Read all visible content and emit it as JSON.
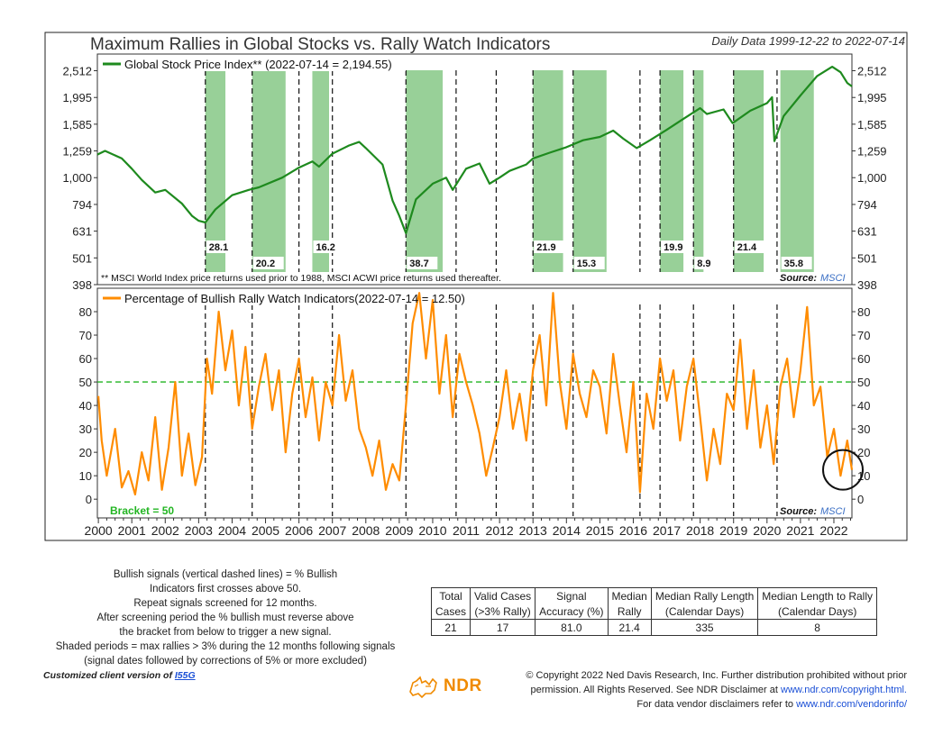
{
  "title": "Maximum Rallies in Global Stocks vs. Rally Watch Indicators",
  "date_range": "Daily Data 1999-12-22 to 2022-07-14",
  "top_panel": {
    "legend": "Global Stock Price Index** (2022-07-14 = 2,194.55)",
    "footnote": "** MSCI World Index price returns used prior to 1988, MSCI ACWI price returns used thereafter.",
    "source_label": "Source:",
    "source_name": "MSCI",
    "line_color": "#1e8a1e"
  },
  "bottom_panel": {
    "legend": "Percentage of Bullish Rally Watch Indicators(2022-07-14 = 12.50)",
    "bracket_label": "Bracket = 50",
    "source_label": "Source:",
    "source_name": "MSCI",
    "line_color": "#ff8c00"
  },
  "chart_data": [
    {
      "type": "line",
      "name": "top-panel",
      "scale": "log",
      "legend": "Global Stock Price Index** (2022-07-14 = 2,194.55)",
      "y_ticks": [
        398,
        501,
        631,
        794,
        1000,
        1259,
        1585,
        1995,
        2512
      ],
      "y_tick_labels": [
        "398",
        "501",
        "631",
        "794",
        "1,000",
        "1,259",
        "1,585",
        "1,995",
        "2,512"
      ],
      "ylim": [
        398,
        2900
      ],
      "x": [
        1999.97,
        2000.2,
        2000.7,
        2001.0,
        2001.3,
        2001.7,
        2002.0,
        2002.5,
        2002.8,
        2003.0,
        2003.2,
        2003.5,
        2004.0,
        2004.5,
        2004.8,
        2005.5,
        2006.0,
        2006.4,
        2006.6,
        2007.0,
        2007.5,
        2007.8,
        2008.0,
        2008.5,
        2008.8,
        2009.0,
        2009.2,
        2009.5,
        2010.0,
        2010.4,
        2010.6,
        2011.0,
        2011.4,
        2011.7,
        2012.0,
        2012.3,
        2012.8,
        2013.0,
        2013.5,
        2014.0,
        2014.5,
        2015.0,
        2015.4,
        2015.7,
        2016.1,
        2016.5,
        2017.0,
        2017.5,
        2018.0,
        2018.2,
        2018.7,
        2018.97,
        2019.5,
        2020.0,
        2020.15,
        2020.22,
        2020.5,
        2021.0,
        2021.5,
        2021.95,
        2022.2,
        2022.4,
        2022.54
      ],
      "values": [
        1220,
        1260,
        1180,
        1080,
        980,
        880,
        900,
        800,
        720,
        690,
        680,
        760,
        860,
        900,
        920,
        1000,
        1090,
        1150,
        1100,
        1230,
        1320,
        1360,
        1290,
        1120,
        820,
        720,
        620,
        830,
        950,
        1000,
        900,
        1080,
        1130,
        950,
        1000,
        1060,
        1120,
        1180,
        1240,
        1300,
        1380,
        1420,
        1500,
        1400,
        1290,
        1380,
        1510,
        1660,
        1820,
        1730,
        1800,
        1600,
        1780,
        1900,
        2000,
        1370,
        1700,
        2030,
        2400,
        2600,
        2480,
        2260,
        2194.55
      ],
      "shaded_periods": [
        {
          "start": 2003.2,
          "end": 2003.8,
          "label": "28.1"
        },
        {
          "start": 2004.6,
          "end": 2005.6,
          "label": "20.2"
        },
        {
          "start": 2006.4,
          "end": 2006.9,
          "label": "16.2"
        },
        {
          "start": 2009.2,
          "end": 2010.3,
          "label": "38.7"
        },
        {
          "start": 2013.0,
          "end": 2013.9,
          "label": "21.9"
        },
        {
          "start": 2014.2,
          "end": 2015.2,
          "label": "15.3"
        },
        {
          "start": 2016.8,
          "end": 2017.5,
          "label": "19.9"
        },
        {
          "start": 2017.8,
          "end": 2018.1,
          "label": "8.9"
        },
        {
          "start": 2019.0,
          "end": 2019.9,
          "label": "21.4"
        },
        {
          "start": 2020.4,
          "end": 2021.4,
          "label": "35.8"
        }
      ],
      "signal_dates": [
        2003.2,
        2004.6,
        2006.0,
        2007.0,
        2009.2,
        2010.7,
        2011.9,
        2013.0,
        2014.2,
        2016.2,
        2016.8,
        2017.8,
        2019.0,
        2020.3
      ]
    },
    {
      "type": "line",
      "name": "bottom-panel",
      "legend": "Percentage of Bullish Rally Watch Indicators(2022-07-14 = 12.50)",
      "y_ticks": [
        0,
        10,
        20,
        30,
        40,
        50,
        60,
        70,
        80
      ],
      "ylim": [
        -8,
        90
      ],
      "bracket": 50,
      "x": [
        2000.0,
        2000.1,
        2000.25,
        2000.5,
        2000.7,
        2000.9,
        2001.1,
        2001.3,
        2001.5,
        2001.7,
        2001.9,
        2002.1,
        2002.3,
        2002.5,
        2002.7,
        2002.9,
        2003.1,
        2003.25,
        2003.4,
        2003.6,
        2003.8,
        2004.0,
        2004.2,
        2004.4,
        2004.6,
        2004.8,
        2005.0,
        2005.2,
        2005.4,
        2005.6,
        2005.8,
        2006.0,
        2006.2,
        2006.4,
        2006.6,
        2006.8,
        2007.0,
        2007.2,
        2007.4,
        2007.6,
        2007.8,
        2008.0,
        2008.2,
        2008.4,
        2008.6,
        2008.8,
        2009.0,
        2009.2,
        2009.4,
        2009.6,
        2009.8,
        2010.0,
        2010.2,
        2010.4,
        2010.6,
        2010.8,
        2011.0,
        2011.2,
        2011.4,
        2011.6,
        2011.8,
        2012.0,
        2012.2,
        2012.4,
        2012.6,
        2012.8,
        2013.0,
        2013.2,
        2013.4,
        2013.6,
        2013.8,
        2014.0,
        2014.2,
        2014.4,
        2014.6,
        2014.8,
        2015.0,
        2015.2,
        2015.4,
        2015.6,
        2015.8,
        2016.0,
        2016.2,
        2016.4,
        2016.6,
        2016.8,
        2017.0,
        2017.2,
        2017.4,
        2017.6,
        2017.8,
        2018.0,
        2018.2,
        2018.4,
        2018.6,
        2018.8,
        2019.0,
        2019.2,
        2019.4,
        2019.6,
        2019.8,
        2020.0,
        2020.2,
        2020.4,
        2020.6,
        2020.8,
        2021.0,
        2021.2,
        2021.4,
        2021.6,
        2021.8,
        2022.0,
        2022.2,
        2022.4,
        2022.54
      ],
      "values": [
        44,
        25,
        10,
        30,
        5,
        12,
        2,
        20,
        8,
        35,
        4,
        22,
        50,
        10,
        28,
        6,
        18,
        60,
        45,
        80,
        55,
        72,
        40,
        65,
        30,
        48,
        62,
        38,
        55,
        20,
        45,
        60,
        35,
        52,
        25,
        50,
        40,
        70,
        42,
        55,
        30,
        22,
        10,
        25,
        4,
        15,
        8,
        40,
        75,
        88,
        60,
        85,
        45,
        70,
        35,
        62,
        50,
        40,
        28,
        10,
        22,
        35,
        55,
        30,
        45,
        25,
        55,
        70,
        40,
        88,
        50,
        30,
        62,
        45,
        35,
        55,
        48,
        28,
        62,
        40,
        20,
        50,
        3,
        45,
        30,
        60,
        42,
        55,
        25,
        48,
        60,
        35,
        8,
        30,
        15,
        45,
        38,
        68,
        30,
        55,
        22,
        40,
        15,
        48,
        60,
        35,
        55,
        82,
        40,
        48,
        18,
        30,
        10,
        25,
        12.5
      ]
    }
  ],
  "x_axis_labels": [
    "2000",
    "2001",
    "2002",
    "2003",
    "2004",
    "2005",
    "2006",
    "2007",
    "2008",
    "2009",
    "2010",
    "2011",
    "2012",
    "2013",
    "2014",
    "2015",
    "2016",
    "2017",
    "2018",
    "2019",
    "2020",
    "2021",
    "2022"
  ],
  "notes": [
    "Bullish signals (vertical dashed lines) = % Bullish",
    "Indicators first crosses above 50.",
    "Repeat signals screened for 12 months.",
    "After screening period the % bullish must reverse above",
    "the bracket from below to trigger a new signal.",
    "Shaded periods = max rallies > 3% during the 12 months following signals",
    "(signal dates followed by corrections of 5% or more excluded)"
  ],
  "stats_table": {
    "headers_row1": [
      "Total",
      "Valid Cases",
      "Signal",
      "Median",
      "Median Rally Length",
      "Median Length to Rally"
    ],
    "headers_row2": [
      "Cases",
      "(>3% Rally)",
      "Accuracy (%)",
      "Rally",
      "(Calendar Days)",
      "(Calendar Days)"
    ],
    "values": [
      "21",
      "17",
      "81.0",
      "21.4",
      "335",
      "8"
    ]
  },
  "footer": {
    "client_text": "Customized client version of ",
    "client_link": "I55G",
    "logo_text": "NDR",
    "copyright_line1": "© Copyright 2022 Ned Davis Research, Inc. Further distribution prohibited without prior",
    "copyright_line2a": "permission. All Rights Reserved. See NDR Disclaimer at ",
    "copyright_link1": "www.ndr.com/copyright.html.",
    "copyright_line3a": "For data vendor disclaimers refer to ",
    "copyright_link2": "www.ndr.com/vendorinfo/"
  }
}
